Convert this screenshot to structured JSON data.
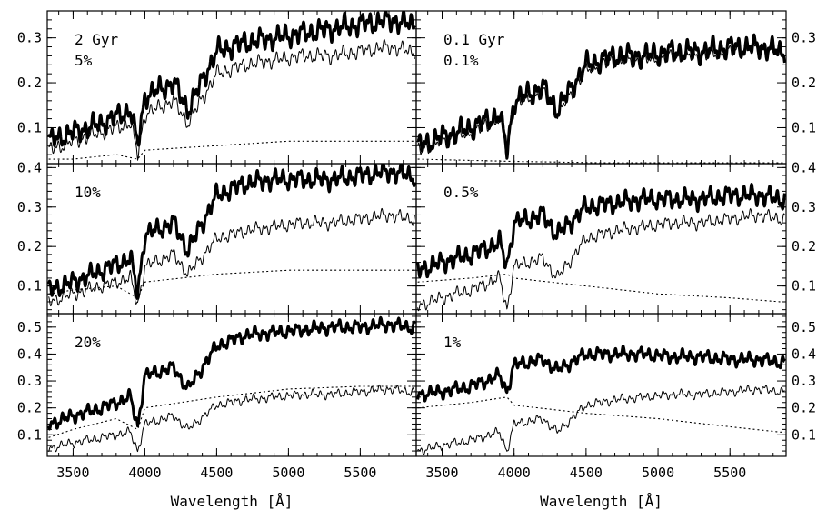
{
  "chart_data": {
    "type": "line",
    "xlabel": "Wavelength [Å]",
    "xlim": [
      3320,
      5890
    ],
    "xticks": [
      3500,
      4000,
      4500,
      5000,
      5500
    ],
    "layout": "3 rows x 2 columns of spectra; thick line = composite spectrum, thin line = older population, dotted line = young component",
    "panels": [
      {
        "id": "p11",
        "row": 0,
        "col": 0,
        "labels": [
          "2 Gyr",
          "5%"
        ],
        "ylim": [
          0.02,
          0.36
        ],
        "yticks": [
          0.1,
          0.2,
          0.3
        ],
        "ytick_side": "left",
        "series": [
          {
            "style": "thick",
            "x": [
              3330,
              3500,
              3700,
              3900,
              3950,
              4000,
              4200,
              4300,
              4500,
              4700,
              4900,
              5100,
              5300,
              5500,
              5700,
              5850
            ],
            "y": [
              0.07,
              0.09,
              0.11,
              0.14,
              0.06,
              0.17,
              0.2,
              0.14,
              0.27,
              0.29,
              0.3,
              0.31,
              0.32,
              0.33,
              0.34,
              0.33
            ]
          },
          {
            "style": "thin",
            "x": [
              3330,
              3500,
              3700,
              3900,
              3950,
              4000,
              4200,
              4300,
              4500,
              4700,
              4900,
              5100,
              5300,
              5500,
              5700,
              5850
            ],
            "y": [
              0.05,
              0.07,
              0.09,
              0.11,
              0.04,
              0.13,
              0.16,
              0.11,
              0.22,
              0.24,
              0.25,
              0.26,
              0.26,
              0.27,
              0.28,
              0.27
            ]
          },
          {
            "style": "dotted",
            "x": [
              3330,
              3500,
              3800,
              3950,
              4000,
              4500,
              5000,
              5500,
              5850
            ],
            "y": [
              0.03,
              0.03,
              0.04,
              0.03,
              0.05,
              0.06,
              0.07,
              0.07,
              0.07
            ]
          }
        ]
      },
      {
        "id": "p12",
        "row": 0,
        "col": 1,
        "labels": [
          "0.1 Gyr",
          "0.1%"
        ],
        "ylim": [
          0.02,
          0.36
        ],
        "yticks": [
          0.1,
          0.2,
          0.3
        ],
        "ytick_side": "right",
        "series": [
          {
            "style": "thick",
            "x": [
              3330,
              3500,
              3700,
              3900,
              3950,
              4000,
              4200,
              4300,
              4500,
              4700,
              4900,
              5100,
              5300,
              5500,
              5700,
              5850
            ],
            "y": [
              0.06,
              0.08,
              0.1,
              0.13,
              0.05,
              0.16,
              0.19,
              0.14,
              0.24,
              0.26,
              0.26,
              0.27,
              0.27,
              0.28,
              0.28,
              0.27
            ]
          },
          {
            "style": "thin",
            "x": [
              3330,
              3500,
              3700,
              3900,
              3950,
              4000,
              4200,
              4300,
              4500,
              4700,
              4900,
              5100,
              5300,
              5500,
              5700,
              5850
            ],
            "y": [
              0.05,
              0.07,
              0.09,
              0.12,
              0.04,
              0.15,
              0.18,
              0.13,
              0.23,
              0.25,
              0.25,
              0.26,
              0.26,
              0.27,
              0.28,
              0.27
            ]
          },
          {
            "style": "dotted",
            "x": [
              3330,
              4000,
              5000,
              5850
            ],
            "y": [
              0.03,
              0.025,
              0.02,
              0.02
            ]
          }
        ]
      },
      {
        "id": "p21",
        "row": 1,
        "col": 0,
        "labels": [
          "10%"
        ],
        "ylim": [
          0.03,
          0.41
        ],
        "yticks": [
          0.1,
          0.2,
          0.3,
          0.4
        ],
        "ytick_side": "left",
        "series": [
          {
            "style": "thick",
            "x": [
              3330,
              3500,
              3700,
              3900,
              3950,
              4000,
              4200,
              4300,
              4500,
              4700,
              4900,
              5100,
              5300,
              5500,
              5700,
              5850
            ],
            "y": [
              0.09,
              0.11,
              0.14,
              0.17,
              0.08,
              0.23,
              0.26,
              0.19,
              0.33,
              0.36,
              0.37,
              0.37,
              0.37,
              0.38,
              0.39,
              0.38
            ]
          },
          {
            "style": "thin",
            "x": [
              3330,
              3500,
              3700,
              3900,
              3950,
              4000,
              4200,
              4300,
              4500,
              4700,
              4900,
              5100,
              5300,
              5500,
              5700,
              5850
            ],
            "y": [
              0.06,
              0.08,
              0.1,
              0.12,
              0.05,
              0.15,
              0.18,
              0.13,
              0.22,
              0.24,
              0.25,
              0.26,
              0.26,
              0.27,
              0.28,
              0.27
            ]
          },
          {
            "style": "dotted",
            "x": [
              3330,
              3500,
              3800,
              3950,
              4000,
              4500,
              5000,
              5500,
              5850
            ],
            "y": [
              0.08,
              0.09,
              0.1,
              0.07,
              0.11,
              0.13,
              0.14,
              0.14,
              0.14
            ]
          }
        ]
      },
      {
        "id": "p22",
        "row": 1,
        "col": 1,
        "labels": [
          "0.5%"
        ],
        "ylim": [
          0.03,
          0.41
        ],
        "yticks": [
          0.1,
          0.2,
          0.3,
          0.4
        ],
        "ytick_side": "right",
        "series": [
          {
            "style": "thick",
            "x": [
              3330,
              3500,
              3700,
              3900,
              3950,
              4000,
              4200,
              4300,
              4500,
              4700,
              4900,
              5100,
              5300,
              5500,
              5700,
              5850
            ],
            "y": [
              0.14,
              0.16,
              0.18,
              0.21,
              0.15,
              0.26,
              0.28,
              0.23,
              0.3,
              0.31,
              0.32,
              0.32,
              0.32,
              0.33,
              0.33,
              0.32
            ]
          },
          {
            "style": "thin",
            "x": [
              3330,
              3500,
              3700,
              3900,
              3950,
              4000,
              4200,
              4300,
              4500,
              4700,
              4900,
              5100,
              5300,
              5500,
              5700,
              5850
            ],
            "y": [
              0.05,
              0.07,
              0.09,
              0.12,
              0.04,
              0.15,
              0.17,
              0.12,
              0.22,
              0.24,
              0.25,
              0.26,
              0.26,
              0.27,
              0.28,
              0.27
            ]
          },
          {
            "style": "dotted",
            "x": [
              3330,
              3700,
              3950,
              4000,
              4500,
              5000,
              5500,
              5850
            ],
            "y": [
              0.11,
              0.12,
              0.13,
              0.12,
              0.1,
              0.08,
              0.07,
              0.06
            ]
          }
        ]
      },
      {
        "id": "p31",
        "row": 2,
        "col": 0,
        "labels": [
          "20%"
        ],
        "ylim": [
          0.02,
          0.55
        ],
        "yticks": [
          0.1,
          0.2,
          0.3,
          0.4,
          0.5
        ],
        "ytick_side": "left",
        "series": [
          {
            "style": "thick",
            "x": [
              3330,
              3500,
              3700,
              3900,
              3950,
              4000,
              4200,
              4300,
              4500,
              4700,
              4900,
              5100,
              5300,
              5500,
              5700,
              5850
            ],
            "y": [
              0.14,
              0.17,
              0.2,
              0.24,
              0.13,
              0.32,
              0.35,
              0.27,
              0.43,
              0.47,
              0.48,
              0.49,
              0.5,
              0.5,
              0.51,
              0.5
            ]
          },
          {
            "style": "thin",
            "x": [
              3330,
              3500,
              3700,
              3900,
              3950,
              4000,
              4200,
              4300,
              4500,
              4700,
              4900,
              5100,
              5300,
              5500,
              5700,
              5850
            ],
            "y": [
              0.05,
              0.07,
              0.09,
              0.11,
              0.04,
              0.14,
              0.17,
              0.12,
              0.21,
              0.23,
              0.24,
              0.25,
              0.25,
              0.26,
              0.27,
              0.26
            ]
          },
          {
            "style": "dotted",
            "x": [
              3330,
              3500,
              3800,
              3950,
              4000,
              4500,
              5000,
              5500,
              5850
            ],
            "y": [
              0.09,
              0.12,
              0.16,
              0.12,
              0.2,
              0.24,
              0.27,
              0.28,
              0.28
            ]
          }
        ]
      },
      {
        "id": "p32",
        "row": 2,
        "col": 1,
        "labels": [
          "1%"
        ],
        "ylim": [
          0.02,
          0.55
        ],
        "yticks": [
          0.1,
          0.2,
          0.3,
          0.4,
          0.5
        ],
        "ytick_side": "right",
        "series": [
          {
            "style": "thick",
            "x": [
              3330,
              3500,
              3700,
              3900,
              3950,
              4000,
              4200,
              4300,
              4500,
              4700,
              4900,
              5100,
              5300,
              5500,
              5700,
              5850
            ],
            "y": [
              0.25,
              0.26,
              0.28,
              0.32,
              0.26,
              0.36,
              0.38,
              0.34,
              0.4,
              0.4,
              0.4,
              0.39,
              0.39,
              0.38,
              0.38,
              0.37
            ]
          },
          {
            "style": "thin",
            "x": [
              3330,
              3500,
              3700,
              3900,
              3950,
              4000,
              4200,
              4300,
              4500,
              4700,
              4900,
              5100,
              5300,
              5500,
              5700,
              5850
            ],
            "y": [
              0.04,
              0.06,
              0.08,
              0.11,
              0.04,
              0.14,
              0.16,
              0.11,
              0.21,
              0.23,
              0.24,
              0.25,
              0.25,
              0.26,
              0.27,
              0.26
            ]
          },
          {
            "style": "dotted",
            "x": [
              3330,
              3700,
              3950,
              4000,
              4500,
              5000,
              5500,
              5850
            ],
            "y": [
              0.2,
              0.22,
              0.24,
              0.21,
              0.18,
              0.16,
              0.13,
              0.11
            ]
          }
        ]
      }
    ]
  }
}
